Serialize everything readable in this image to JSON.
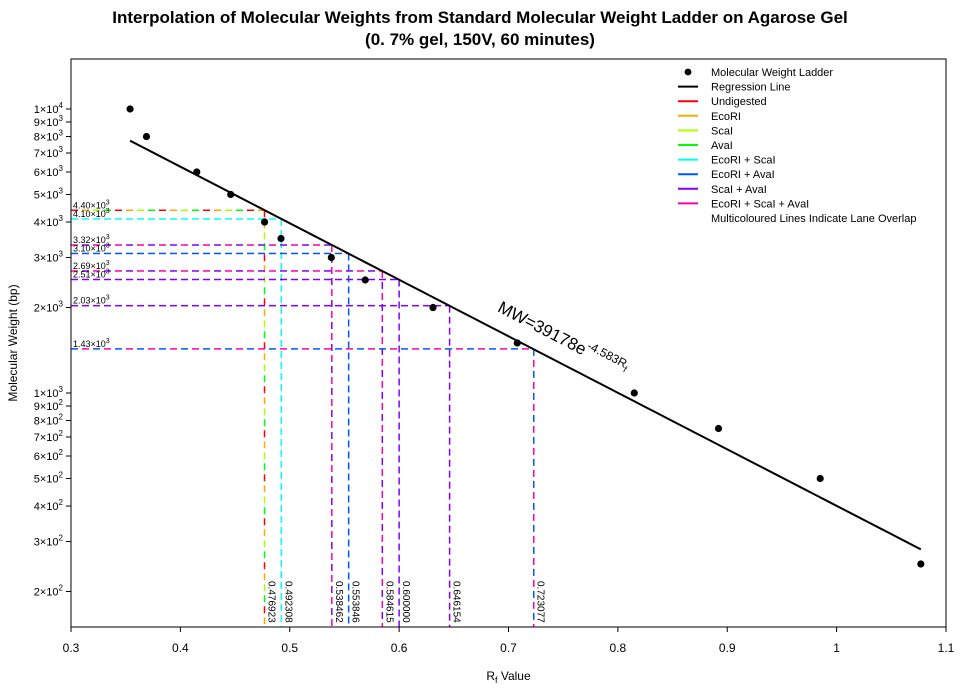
{
  "chart_data": {
    "type": "scatter",
    "title_line1": "Interpolation of Molecular Weights from Standard Molecular Weight Ladder on Agarose Gel",
    "title_line2": "(0. 7% gel, 150V, 60 minutes)",
    "xlabel_main": "R",
    "xlabel_sub": "f",
    "xlabel_rest": " Value",
    "ylabel": "Molecular Weight (bp)",
    "xlim": [
      0.3,
      1.1
    ],
    "ylim": [
      150,
      15000
    ],
    "y_scale": "log",
    "x_ticks": [
      {
        "v": 0.3,
        "label": "0.3"
      },
      {
        "v": 0.4,
        "label": "0.4"
      },
      {
        "v": 0.5,
        "label": "0.5"
      },
      {
        "v": 0.6,
        "label": "0.6"
      },
      {
        "v": 0.7,
        "label": "0.7"
      },
      {
        "v": 0.8,
        "label": "0.8"
      },
      {
        "v": 0.9,
        "label": "0.9"
      },
      {
        "v": 1.0,
        "label": "1"
      },
      {
        "v": 1.1,
        "label": "1.1"
      }
    ],
    "y_ticks": [
      {
        "v": 200,
        "m": "2",
        "e": "2"
      },
      {
        "v": 300,
        "m": "3",
        "e": "2"
      },
      {
        "v": 400,
        "m": "4",
        "e": "2"
      },
      {
        "v": 500,
        "m": "5",
        "e": "2"
      },
      {
        "v": 600,
        "m": "6",
        "e": "2"
      },
      {
        "v": 700,
        "m": "7",
        "e": "2"
      },
      {
        "v": 800,
        "m": "8",
        "e": "2"
      },
      {
        "v": 900,
        "m": "9",
        "e": "2"
      },
      {
        "v": 1000,
        "m": "1",
        "e": "3"
      },
      {
        "v": 2000,
        "m": "2",
        "e": "3"
      },
      {
        "v": 3000,
        "m": "3",
        "e": "3"
      },
      {
        "v": 4000,
        "m": "4",
        "e": "3"
      },
      {
        "v": 5000,
        "m": "5",
        "e": "3"
      },
      {
        "v": 6000,
        "m": "6",
        "e": "3"
      },
      {
        "v": 7000,
        "m": "7",
        "e": "3"
      },
      {
        "v": 8000,
        "m": "8",
        "e": "3"
      },
      {
        "v": 9000,
        "m": "9",
        "e": "3"
      },
      {
        "v": 10000,
        "m": "1",
        "e": "4"
      }
    ],
    "ladder": {
      "name": "Molecular Weight Ladder",
      "x": [
        0.354,
        0.369,
        0.415,
        0.446,
        0.477,
        0.492,
        0.538,
        0.569,
        0.631,
        0.708,
        0.815,
        0.892,
        0.985,
        1.077
      ],
      "y": [
        10000,
        8000,
        6000,
        5000,
        4000,
        3500,
        3000,
        2500,
        2000,
        1500,
        1000,
        750,
        500,
        250
      ]
    },
    "regression": {
      "name": "Regression Line",
      "a": 39178,
      "b": -4.583,
      "x_range": [
        0.354,
        1.077
      ],
      "label_main": "MW=39178e",
      "label_exp": "-4.583R",
      "label_sub": "f"
    },
    "legend": {
      "position": "top-right",
      "entries": [
        {
          "label": "Molecular Weight Ladder",
          "kind": "point",
          "color": "#000000"
        },
        {
          "label": "Regression Line",
          "kind": "line",
          "color": "#000000"
        },
        {
          "label": "Undigested",
          "kind": "line",
          "color": "#FF0000"
        },
        {
          "label": "EcoRI",
          "kind": "line",
          "color": "#FFAA00"
        },
        {
          "label": "ScaI",
          "kind": "line",
          "color": "#AAFF00"
        },
        {
          "label": "AvaI",
          "kind": "line",
          "color": "#00FF00"
        },
        {
          "label": "EcoRI + ScaI",
          "kind": "line",
          "color": "#00FFFF"
        },
        {
          "label": "EcoRI + AvaI",
          "kind": "line",
          "color": "#0055FF"
        },
        {
          "label": "ScaI + AvaI",
          "kind": "line",
          "color": "#7F00FF"
        },
        {
          "label": "EcoRI + ScaI + AvaI",
          "kind": "line",
          "color": "#FF00AA"
        },
        {
          "label": "Multicoloured Lines Indicate Lane Overlap",
          "kind": "none",
          "color": "#000000"
        }
      ]
    },
    "interpolations": [
      {
        "x": 0.476923,
        "x_label": "0.476923",
        "y": 4400,
        "y_label": "4.40",
        "y_exp": "3",
        "colors": [
          "#FF0000",
          "#FFAA00",
          "#AAFF00",
          "#00FF00"
        ]
      },
      {
        "x": 0.492308,
        "x_label": "0.492308",
        "y": 4100,
        "y_label": "4.10",
        "y_exp": "3",
        "colors": [
          "#00FFFF"
        ]
      },
      {
        "x": 0.538462,
        "x_label": "0.538462",
        "y": 3320,
        "y_label": "3.32",
        "y_exp": "3",
        "colors": [
          "#FF00AA",
          "#7F00FF"
        ]
      },
      {
        "x": 0.553846,
        "x_label": "0.553846",
        "y": 3100,
        "y_label": "3.10",
        "y_exp": "3",
        "colors": [
          "#0055FF"
        ]
      },
      {
        "x": 0.584615,
        "x_label": "0.584615",
        "y": 2690,
        "y_label": "2.69",
        "y_exp": "3",
        "colors": [
          "#FF00AA",
          "#7F00FF"
        ]
      },
      {
        "x": 0.6,
        "x_label": "0.600000",
        "y": 2510,
        "y_label": "2.51",
        "y_exp": "3",
        "colors": [
          "#7F00FF"
        ]
      },
      {
        "x": 0.646154,
        "x_label": "0.646154",
        "y": 2030,
        "y_label": "2.03",
        "y_exp": "3",
        "colors": [
          "#7F00FF"
        ]
      },
      {
        "x": 0.723077,
        "x_label": "0.723077",
        "y": 1430,
        "y_label": "1.43",
        "y_exp": "3",
        "colors": [
          "#0055FF",
          "#FF00AA"
        ]
      }
    ]
  }
}
